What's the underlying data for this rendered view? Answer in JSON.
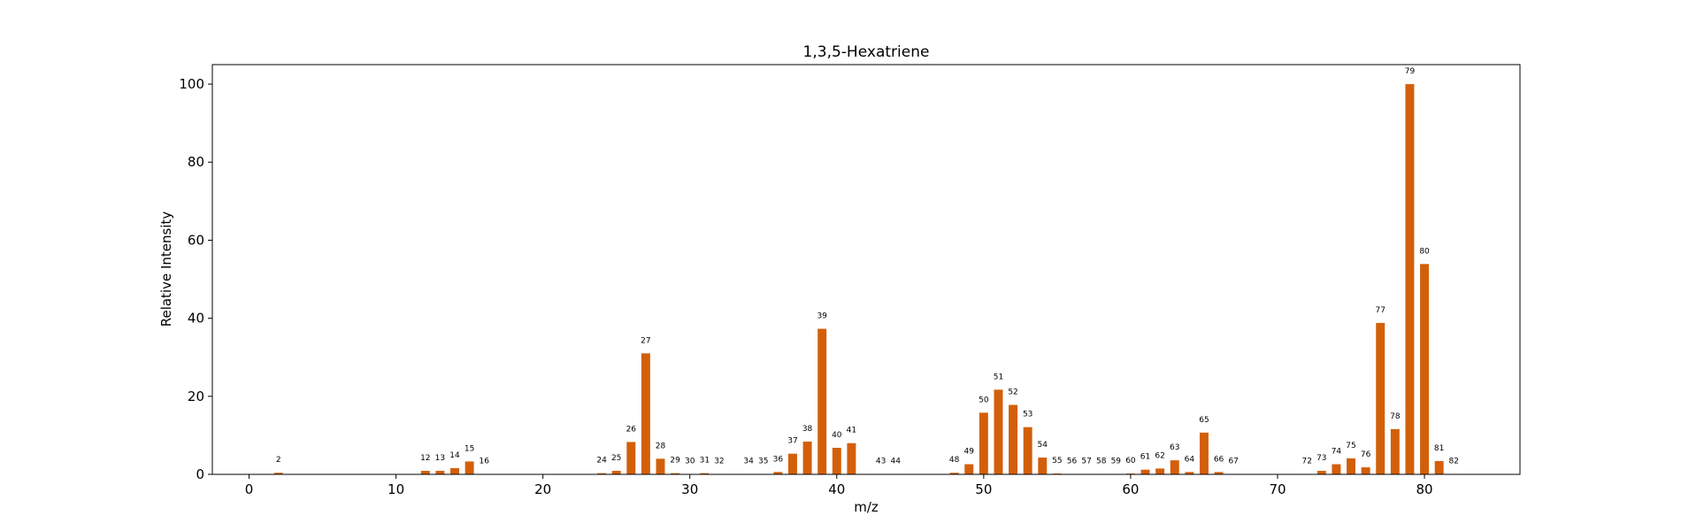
{
  "chart_data": {
    "type": "bar",
    "title": "1,3,5-Hexatriene",
    "xlabel": "m/z",
    "ylabel": "Relative Intensity",
    "xlim": [
      -2.5,
      86.5
    ],
    "ylim": [
      0,
      105
    ],
    "xticks": [
      0,
      10,
      20,
      30,
      40,
      50,
      60,
      70,
      80
    ],
    "yticks": [
      0,
      20,
      40,
      60,
      80,
      100
    ],
    "grid": false,
    "bar_color": "#d35f0a",
    "x": [
      2,
      12,
      13,
      14,
      15,
      16,
      24,
      25,
      26,
      27,
      28,
      29,
      30,
      31,
      32,
      34,
      35,
      36,
      37,
      38,
      39,
      40,
      41,
      43,
      44,
      48,
      49,
      50,
      51,
      52,
      53,
      54,
      55,
      56,
      57,
      58,
      59,
      60,
      61,
      62,
      63,
      64,
      65,
      66,
      67,
      72,
      73,
      74,
      75,
      76,
      77,
      78,
      79,
      80,
      81,
      82
    ],
    "values": [
      0.4,
      0.9,
      0.9,
      1.6,
      3.3,
      0.1,
      0.3,
      0.9,
      8.3,
      31.0,
      4.0,
      0.3,
      0.1,
      0.3,
      0.1,
      0.1,
      0.1,
      0.6,
      5.3,
      8.4,
      37.3,
      6.8,
      8.0,
      0.1,
      0.1,
      0.4,
      2.6,
      15.8,
      21.7,
      17.8,
      12.1,
      4.3,
      0.2,
      0.1,
      0.1,
      0.1,
      0.1,
      0.2,
      1.2,
      1.5,
      3.6,
      0.6,
      10.7,
      0.6,
      0.1,
      0.1,
      0.9,
      2.6,
      4.1,
      1.8,
      38.8,
      11.6,
      100.0,
      53.9,
      3.4,
      0.1
    ]
  }
}
